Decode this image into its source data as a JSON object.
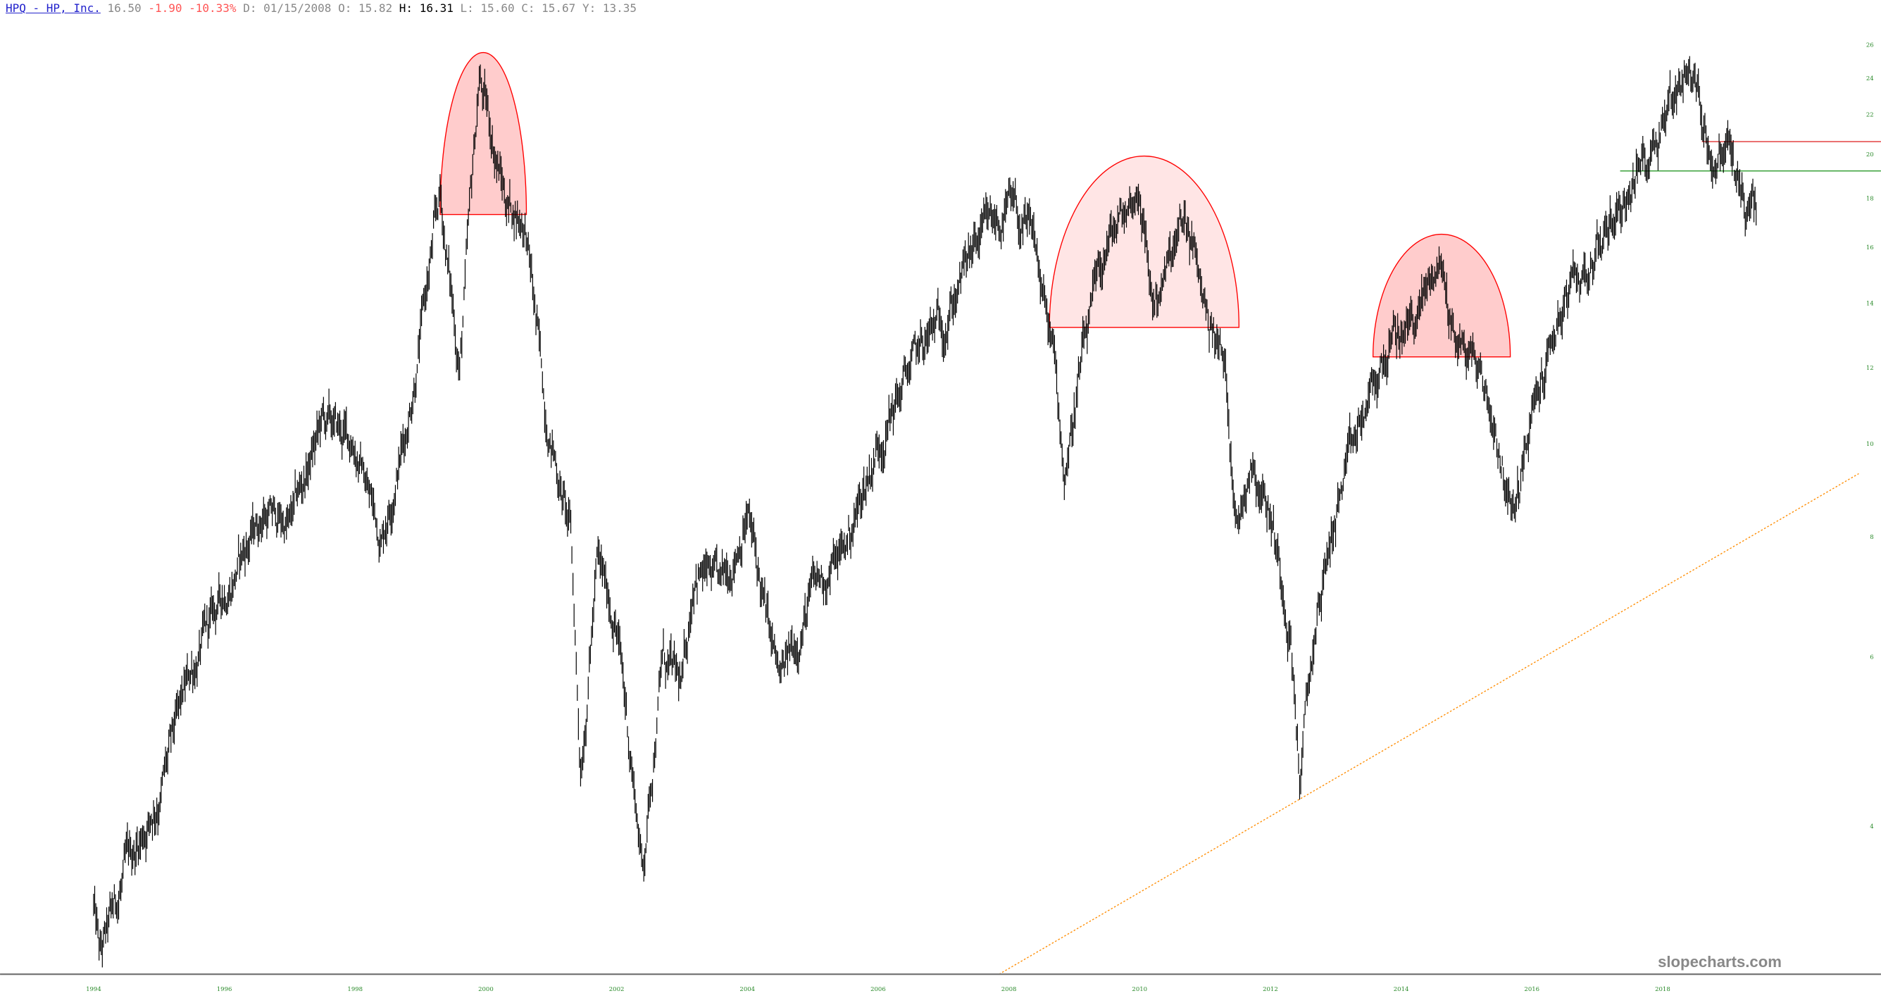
{
  "header": {
    "symbol": "HPQ - HP, Inc.",
    "last": "16.50",
    "change": "-1.90",
    "change_pct": "-10.33%",
    "date_label": "D:",
    "date": "01/15/2008",
    "open_label": "O:",
    "open": "15.82",
    "high_label": "H:",
    "high": "16.31",
    "low_label": "L:",
    "low": "15.60",
    "close_label": "C:",
    "close": "15.67",
    "y_label": "Y:",
    "y": "13.35"
  },
  "watermark": "slopecharts.com",
  "colors": {
    "bars": "#000000",
    "axis_labels": "#2a8a2a",
    "dome": "#ff0000",
    "resistance": "#e03030",
    "support": "#2a9a2a",
    "trendline": "#ff8c00"
  },
  "chart_data": {
    "type": "bar",
    "scale": "log",
    "ylim": [
      2.8,
      27
    ],
    "xlim": [
      1993.9,
      2021.0
    ],
    "y_ticks": [
      "26",
      "24",
      "22",
      "20",
      "18",
      "16",
      "14",
      "12",
      "10",
      "8",
      "6",
      "4"
    ],
    "x_ticks": [
      "1994",
      "1996",
      "1998",
      "2000",
      "2002",
      "2004",
      "2006",
      "2008",
      "2010",
      "2012",
      "2014",
      "2016",
      "2018"
    ],
    "price_path": [
      [
        1994.0,
        3.3
      ],
      [
        1994.1,
        2.9
      ],
      [
        1994.5,
        3.6
      ],
      [
        1995.0,
        4.3
      ],
      [
        1995.5,
        5.8
      ],
      [
        1996.0,
        7.0
      ],
      [
        1996.6,
        8.5
      ],
      [
        1997.0,
        8.2
      ],
      [
        1997.5,
        10.5
      ],
      [
        1998.0,
        10.0
      ],
      [
        1998.4,
        8.0
      ],
      [
        1998.8,
        10.5
      ],
      [
        1999.3,
        18.0
      ],
      [
        1999.6,
        12.0
      ],
      [
        1999.9,
        24.0
      ],
      [
        2000.3,
        18.0
      ],
      [
        2000.6,
        17.0
      ],
      [
        2000.9,
        11.0
      ],
      [
        2001.3,
        8.0
      ],
      [
        2001.45,
        4.6
      ],
      [
        2001.7,
        7.5
      ],
      [
        2002.0,
        6.5
      ],
      [
        2002.3,
        4.2
      ],
      [
        2002.4,
        3.6
      ],
      [
        2002.7,
        6.0
      ],
      [
        2003.0,
        5.5
      ],
      [
        2003.2,
        7.5
      ],
      [
        2003.6,
        7.0
      ],
      [
        2004.0,
        8.5
      ],
      [
        2004.3,
        6.5
      ],
      [
        2004.5,
        5.6
      ],
      [
        2005.0,
        7.0
      ],
      [
        2005.5,
        7.8
      ],
      [
        2006.0,
        10.0
      ],
      [
        2006.5,
        12.0
      ],
      [
        2007.0,
        13.5
      ],
      [
        2007.5,
        16.0
      ],
      [
        2008.0,
        17.5
      ],
      [
        2008.4,
        16.0
      ],
      [
        2008.7,
        12.0
      ],
      [
        2008.85,
        9.3
      ],
      [
        2009.1,
        12.0
      ],
      [
        2009.5,
        16.0
      ],
      [
        2010.0,
        18.5
      ],
      [
        2010.2,
        14.0
      ],
      [
        2010.5,
        15.5
      ],
      [
        2010.7,
        17.0
      ],
      [
        2011.0,
        14.0
      ],
      [
        2011.3,
        12.0
      ],
      [
        2011.5,
        8.2
      ],
      [
        2011.7,
        9.8
      ],
      [
        2012.0,
        8.5
      ],
      [
        2012.3,
        6.5
      ],
      [
        2012.45,
        4.5
      ],
      [
        2012.7,
        6.5
      ],
      [
        2013.0,
        8.5
      ],
      [
        2013.4,
        10.5
      ],
      [
        2013.8,
        12.5
      ],
      [
        2014.2,
        13.5
      ],
      [
        2014.6,
        15.5
      ],
      [
        2014.8,
        13.0
      ],
      [
        2015.2,
        12.0
      ],
      [
        2015.5,
        10.0
      ],
      [
        2015.7,
        8.3
      ],
      [
        2016.0,
        10.5
      ],
      [
        2016.4,
        13.5
      ],
      [
        2016.8,
        15.0
      ],
      [
        2017.2,
        17.0
      ],
      [
        2017.7,
        19.5
      ],
      [
        2018.0,
        22.0
      ],
      [
        2018.4,
        25.0
      ],
      [
        2018.6,
        22.0
      ],
      [
        2018.8,
        19.5
      ],
      [
        2019.0,
        20.5
      ],
      [
        2019.2,
        18.0
      ],
      [
        2019.43,
        17.0
      ]
    ],
    "annotations": {
      "domes": [
        {
          "x": [
            1999.3,
            2000.62
          ],
          "base": 17.3,
          "top": 25.5,
          "fill_opacity": 0.2
        },
        {
          "x": [
            2008.62,
            2011.52
          ],
          "base": 13.2,
          "top": 19.9,
          "fill_opacity": 0.1
        },
        {
          "x": [
            2013.57,
            2015.67
          ],
          "base": 12.3,
          "top": 16.5,
          "fill_opacity": 0.2
        }
      ],
      "resistance": {
        "value": 20.6,
        "from": 2018.6
      },
      "support": {
        "value": 19.2,
        "from": 2017.35
      },
      "trendline": {
        "from": [
          2007.85,
          2.8
        ],
        "to": [
          2021.0,
          9.3
        ],
        "style": "dotted"
      }
    }
  }
}
